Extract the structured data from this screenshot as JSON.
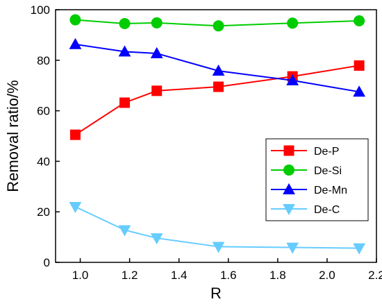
{
  "chart_data": {
    "type": "line",
    "title": "",
    "xlabel": "R",
    "ylabel": "Removal ratio/%",
    "xlim": [
      0.9,
      2.2
    ],
    "ylim": [
      0,
      100
    ],
    "xticks": [
      1.0,
      1.2,
      1.4,
      1.6,
      1.8,
      2.0,
      2.2
    ],
    "xtick_labels": [
      "1.0",
      "1.2",
      "1.4",
      "1.6",
      "1.8",
      "2.0",
      "2.2"
    ],
    "yticks": [
      0,
      20,
      40,
      60,
      80,
      100
    ],
    "ytick_labels": [
      "0",
      "20",
      "40",
      "60",
      "80",
      "100"
    ],
    "grid": false,
    "legend_position": "right-lower",
    "x": [
      0.98,
      1.18,
      1.31,
      1.56,
      1.86,
      2.13
    ],
    "series": [
      {
        "name": "De-P",
        "marker": "square",
        "color": "#ff0000",
        "values": [
          50.5,
          63.2,
          67.9,
          69.5,
          73.6,
          77.9
        ]
      },
      {
        "name": "De-Si",
        "marker": "circle",
        "color": "#00cc00",
        "values": [
          96.0,
          94.5,
          94.8,
          93.6,
          94.7,
          95.6
        ]
      },
      {
        "name": "De-Mn",
        "marker": "triangle-up",
        "color": "#0000ff",
        "values": [
          86.3,
          83.4,
          82.7,
          75.8,
          72.0,
          67.5
        ]
      },
      {
        "name": "De-C",
        "marker": "triangle-down",
        "color": "#66ccff",
        "values": [
          22.0,
          12.8,
          9.6,
          6.2,
          5.9,
          5.6
        ]
      }
    ]
  }
}
